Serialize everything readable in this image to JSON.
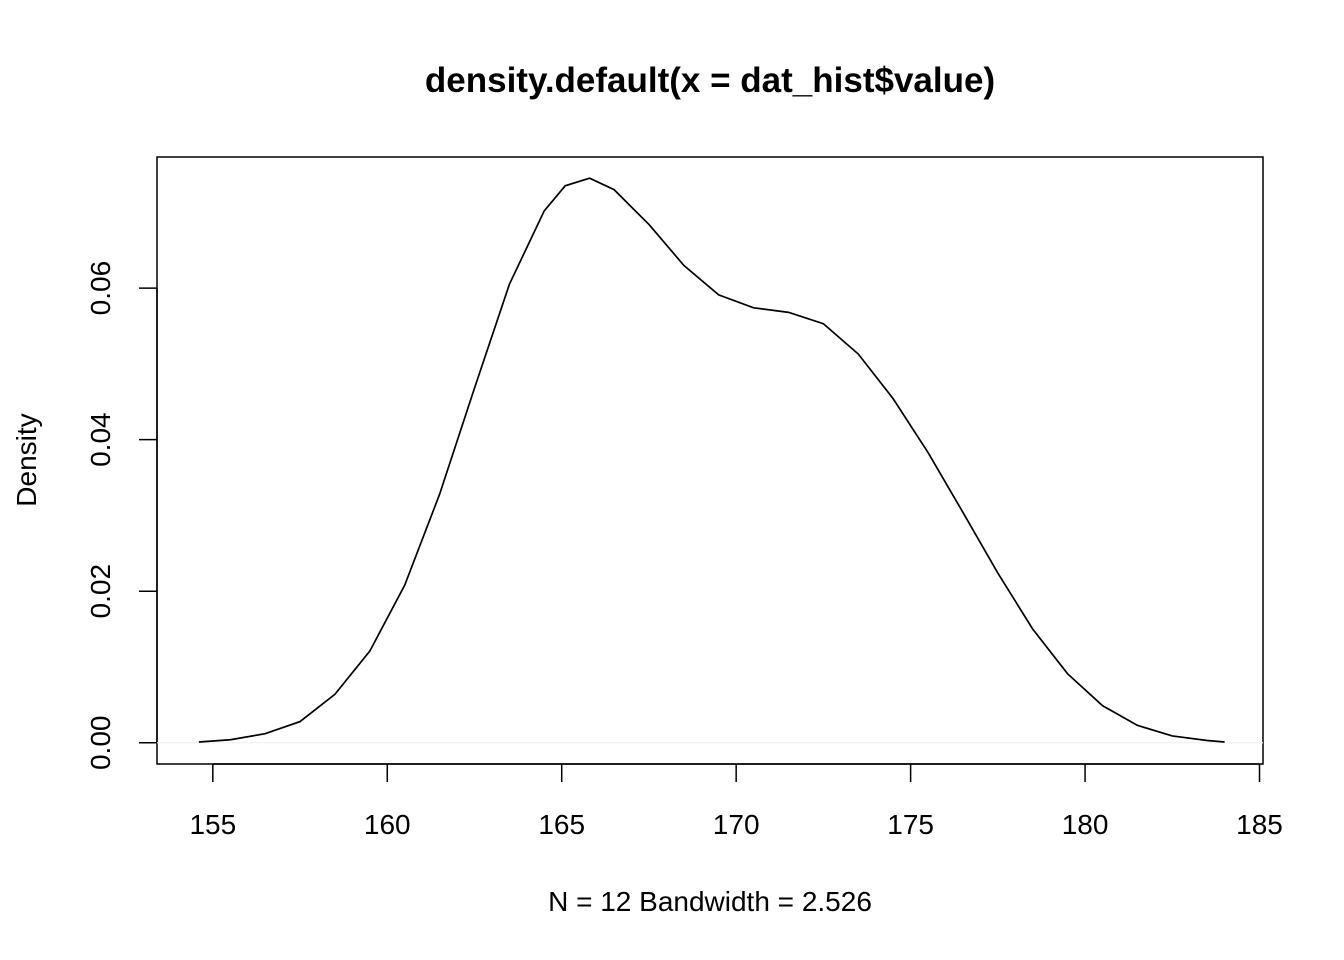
{
  "chart_data": {
    "type": "line",
    "title": "density.default(x = dat_hist$value)",
    "xlabel": "N = 12   Bandwidth = 2.526",
    "ylabel": "Density",
    "xlim": [
      153.4,
      185.1
    ],
    "ylim": [
      -0.0028,
      0.0773
    ],
    "x_ticks": [
      155,
      160,
      165,
      170,
      175,
      180,
      185
    ],
    "x_tick_labels": [
      "155",
      "160",
      "165",
      "170",
      "175",
      "180",
      "185"
    ],
    "y_ticks": [
      0.0,
      0.02,
      0.04,
      0.06
    ],
    "y_tick_labels": [
      "0.00",
      "0.02",
      "0.04",
      "0.06"
    ],
    "grid": false,
    "zero_line": true,
    "series": [
      {
        "x": [
          154.6,
          155.5,
          156.5,
          157.5,
          158.5,
          159.5,
          160.5,
          161.5,
          162.5,
          163.5,
          164.5,
          165.1,
          165.8,
          166.5,
          167.5,
          168.5,
          169.5,
          170.5,
          171.5,
          172.5,
          173.5,
          174.5,
          175.5,
          176.5,
          177.5,
          178.5,
          179.5,
          180.5,
          181.5,
          182.5,
          183.5,
          184.0
        ],
        "y": [
          0.0001,
          0.0004,
          0.0012,
          0.0028,
          0.0064,
          0.0121,
          0.0208,
          0.0328,
          0.0468,
          0.0605,
          0.0702,
          0.0735,
          0.0745,
          0.073,
          0.0684,
          0.063,
          0.0591,
          0.0574,
          0.0568,
          0.0553,
          0.0513,
          0.0454,
          0.0383,
          0.0304,
          0.0224,
          0.015,
          0.0091,
          0.0049,
          0.0023,
          0.0009,
          0.0003,
          0.0001
        ]
      }
    ]
  }
}
